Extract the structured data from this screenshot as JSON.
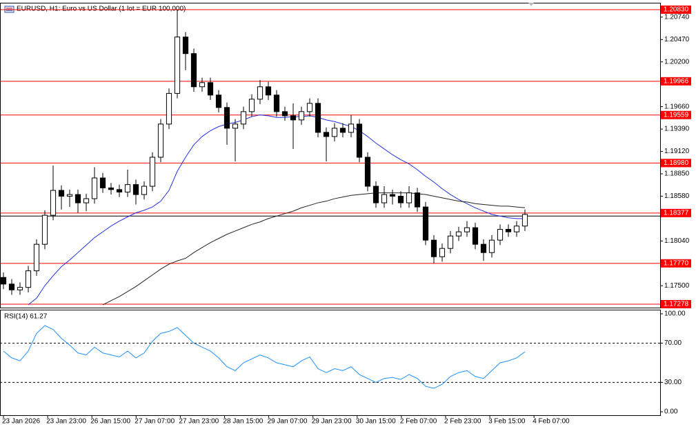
{
  "chart_data": [
    {
      "type": "candlestick",
      "title": "EURUSD, H1:  Euro vs US Dollar (1 lot = EUR 100,000)",
      "open": [
        1.176,
        1.1752,
        1.1745,
        1.1748,
        1.1768,
        1.18,
        1.1835,
        1.1865,
        1.1858,
        1.186,
        1.185,
        1.1855,
        1.188,
        1.1868,
        1.1866,
        1.1863,
        1.1872,
        1.186,
        1.187,
        1.1905,
        1.1945,
        1.1982,
        1.205,
        1.203,
        1.199,
        1.1995,
        1.198,
        1.1965,
        1.194,
        1.1945,
        1.196,
        1.1975,
        1.199,
        1.198,
        1.196,
        1.1955,
        1.195,
        1.196,
        1.197,
        1.1935,
        1.193,
        1.194,
        1.1935,
        1.1945,
        1.1905,
        1.187,
        1.185,
        1.186,
        1.1858,
        1.185,
        1.1862,
        1.1845,
        1.1805,
        1.1785,
        1.1795,
        1.181,
        1.1815,
        1.182,
        1.18,
        1.179,
        1.1805,
        1.1818,
        1.1815,
        1.1822
      ],
      "high": [
        1.1766,
        1.1758,
        1.1754,
        1.1774,
        1.1806,
        1.1841,
        1.1895,
        1.1871,
        1.1866,
        1.1866,
        1.1861,
        1.1893,
        1.1886,
        1.1874,
        1.1872,
        1.189,
        1.1878,
        1.1876,
        1.1911,
        1.1951,
        1.1988,
        1.2083,
        1.2056,
        1.2036,
        1.2001,
        1.2001,
        1.1986,
        1.1971,
        1.1951,
        1.1966,
        1.1981,
        1.1998,
        1.1996,
        1.1986,
        1.1966,
        1.197,
        1.1966,
        1.1976,
        1.1976,
        1.1941,
        1.1946,
        1.1946,
        1.1956,
        1.1951,
        1.1911,
        1.1876,
        1.187,
        1.1866,
        1.1864,
        1.187,
        1.1868,
        1.1851,
        1.1811,
        1.1801,
        1.1816,
        1.1821,
        1.1828,
        1.1826,
        1.1806,
        1.1811,
        1.1824,
        1.1824,
        1.1828,
        1.1842
      ],
      "low": [
        1.1746,
        1.1739,
        1.1739,
        1.1742,
        1.1762,
        1.1794,
        1.1829,
        1.1842,
        1.1845,
        1.1838,
        1.184,
        1.1849,
        1.1862,
        1.186,
        1.1857,
        1.1857,
        1.1848,
        1.1854,
        1.1864,
        1.1899,
        1.1939,
        1.1976,
        1.201,
        1.1984,
        1.1984,
        1.1974,
        1.1959,
        1.192,
        1.19,
        1.1939,
        1.1954,
        1.1969,
        1.1974,
        1.1954,
        1.1949,
        1.1915,
        1.1944,
        1.1954,
        1.1929,
        1.19,
        1.1924,
        1.1929,
        1.1929,
        1.1899,
        1.1864,
        1.1844,
        1.1844,
        1.1848,
        1.1844,
        1.1844,
        1.1839,
        1.1799,
        1.1777,
        1.1779,
        1.1789,
        1.1804,
        1.1809,
        1.1794,
        1.178,
        1.1784,
        1.1799,
        1.1809,
        1.1809,
        1.1816
      ],
      "close": [
        1.1752,
        1.1745,
        1.1748,
        1.1768,
        1.18,
        1.1835,
        1.1865,
        1.1858,
        1.186,
        1.185,
        1.1855,
        1.188,
        1.1868,
        1.1866,
        1.1863,
        1.1872,
        1.186,
        1.187,
        1.1905,
        1.1945,
        1.1982,
        1.205,
        1.203,
        1.199,
        1.1995,
        1.198,
        1.1965,
        1.194,
        1.1945,
        1.196,
        1.1975,
        1.199,
        1.198,
        1.196,
        1.1955,
        1.195,
        1.196,
        1.197,
        1.1935,
        1.193,
        1.194,
        1.1935,
        1.1945,
        1.1905,
        1.187,
        1.185,
        1.186,
        1.1858,
        1.185,
        1.1862,
        1.1845,
        1.1805,
        1.1785,
        1.1795,
        1.181,
        1.1815,
        1.182,
        1.18,
        1.179,
        1.1805,
        1.1818,
        1.1815,
        1.1822,
        1.1836
      ],
      "overlays": [
        {
          "color": "#2030e0",
          "values": [
            null,
            null,
            null,
            1.1727,
            1.1735,
            1.175,
            1.1762,
            1.1773,
            1.1781,
            1.179,
            1.1799,
            1.1808,
            1.1815,
            1.1822,
            1.1828,
            1.1833,
            1.1838,
            1.1841,
            1.1845,
            1.1852,
            1.1865,
            1.1888,
            1.1905,
            1.192,
            1.193,
            1.1937,
            1.1942,
            1.1945,
            1.1947,
            1.195,
            1.1954,
            1.1956,
            1.1955,
            1.1953,
            1.1953,
            1.1954,
            1.1954,
            1.1955,
            1.1953,
            1.195,
            1.1948,
            1.1945,
            1.1942,
            1.1937,
            1.193,
            1.1922,
            1.1915,
            1.1908,
            1.1902,
            1.1897,
            1.189,
            1.1882,
            1.1875,
            1.1867,
            1.186,
            1.1854,
            1.1849,
            1.1844,
            1.184,
            1.1836,
            1.1834,
            1.1832,
            1.1831,
            1.1831
          ]
        },
        {
          "color": "#222222",
          "values": [
            null,
            null,
            null,
            null,
            null,
            null,
            null,
            null,
            null,
            null,
            null,
            null,
            1.1727,
            1.1732,
            1.1737,
            1.1743,
            1.1749,
            1.1756,
            1.1763,
            1.177,
            1.1776,
            1.178,
            1.1783,
            1.179,
            1.1796,
            1.1802,
            1.1807,
            1.1812,
            1.1816,
            1.182,
            1.1824,
            1.1827,
            1.1831,
            1.1834,
            1.1837,
            1.184,
            1.1844,
            1.1847,
            1.185,
            1.1852,
            1.1855,
            1.1857,
            1.1859,
            1.186,
            1.1861,
            1.1862,
            1.1862,
            1.1862,
            1.1862,
            1.1862,
            1.1861,
            1.186,
            1.1858,
            1.1856,
            1.1854,
            1.1852,
            1.1851,
            1.1849,
            1.1848,
            1.1847,
            1.1846,
            1.1846,
            1.1845,
            1.1844
          ]
        }
      ],
      "price_line": 1.1834,
      "level_color": "#ff0000",
      "levels": [
        {
          "value": 1.2083,
          "label": "1.20830"
        },
        {
          "value": 1.19966,
          "label": "1.19966"
        },
        {
          "value": 1.19559,
          "label": "1.19559"
        },
        {
          "value": 1.1898,
          "label": "1.18980"
        },
        {
          "value": 1.18377,
          "label": "1.18377"
        },
        {
          "value": 1.1777,
          "label": "1.17770"
        },
        {
          "value": 1.17278,
          "label": "1.17278"
        }
      ],
      "ylim": [
        1.17236,
        1.20905
      ],
      "yticks": [
        {
          "value": 1.2074,
          "label": "1.20740"
        },
        {
          "value": 1.2047,
          "label": "1.20470"
        },
        {
          "value": 1.202,
          "label": "1.20200"
        },
        {
          "value": 1.1966,
          "label": "1.19660"
        },
        {
          "value": 1.1939,
          "label": "1.19390"
        },
        {
          "value": 1.1912,
          "label": "1.19120"
        },
        {
          "value": 1.1885,
          "label": "1.18850"
        },
        {
          "value": 1.1858,
          "label": "1.18580"
        },
        {
          "value": 1.1804,
          "label": "1.18040"
        },
        {
          "value": 1.175,
          "label": "1.17500"
        }
      ],
      "x_labels": [
        "23 Jan 2026",
        "23 Jan 23:00",
        "26 Jan 15:00",
        "27 Jan 07:00",
        "27 Jan 23:00",
        "28 Jan 15:00",
        "29 Jan 07:00",
        "29 Jan 23:00",
        "30 Jan 15:00",
        "2 Feb 07:00",
        "2 Feb 23:00",
        "3 Feb 15:00",
        "4 Feb 07:00"
      ]
    },
    {
      "type": "line",
      "title": "RSI(14) 61.27",
      "color": "#1e90ff",
      "values": [
        62,
        55,
        52,
        62,
        80,
        88,
        84,
        75,
        68,
        60,
        58,
        66,
        60,
        58,
        56,
        62,
        55,
        60,
        72,
        80,
        82,
        86,
        78,
        70,
        66,
        62,
        55,
        46,
        42,
        50,
        54,
        58,
        55,
        50,
        48,
        46,
        52,
        56,
        44,
        40,
        44,
        42,
        46,
        38,
        34,
        30,
        34,
        35,
        33,
        38,
        34,
        26,
        24,
        28,
        36,
        40,
        42,
        36,
        34,
        42,
        50,
        52,
        55,
        61.27
      ],
      "levels": [
        70,
        30
      ],
      "ylim": [
        -3.5,
        103.5
      ],
      "yticks": [
        {
          "value": 100,
          "label": "100.00"
        },
        {
          "value": 70,
          "label": "70.00"
        },
        {
          "value": 30,
          "label": "30.00"
        },
        {
          "value": 0,
          "label": "0.00"
        }
      ]
    }
  ]
}
